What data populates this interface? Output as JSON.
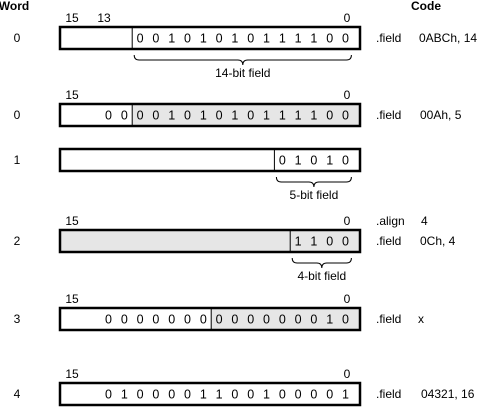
{
  "colors": {
    "field_fill": "#e6e6e6",
    "empty_fill": "#ffffff",
    "stroke": "#000000"
  },
  "headers": {
    "word": "Word",
    "code": "Code"
  },
  "rows": [
    {
      "word": "0",
      "msb_label": "15",
      "high_label": "13",
      "lsb_label": "0",
      "segments": [
        {
          "from": 15,
          "to": 14,
          "shaded": false,
          "bits": []
        },
        {
          "from": 13,
          "to": 0,
          "shaded": false,
          "bits": [
            "0",
            "0",
            "1",
            "0",
            "1",
            "0",
            "1",
            "0",
            "1",
            "1",
            "1",
            "1",
            "0",
            "0"
          ]
        }
      ],
      "brace": {
        "from": 13,
        "to": 0,
        "label": "14-bit field"
      },
      "code": [
        ".field",
        "0ABCh, 14"
      ]
    },
    {
      "word": "0",
      "msb_label": "15",
      "high_label": "",
      "lsb_label": "0",
      "segments": [
        {
          "from": 15,
          "to": 14,
          "shaded": false,
          "bits": [
            "0",
            "0"
          ]
        },
        {
          "from": 13,
          "to": 0,
          "shaded": true,
          "bits": [
            "0",
            "0",
            "1",
            "0",
            "1",
            "0",
            "1",
            "0",
            "1",
            "1",
            "1",
            "1",
            "0",
            "0"
          ]
        }
      ],
      "brace": null,
      "code": [
        ".field",
        "00Ah, 5"
      ]
    },
    {
      "word": "1",
      "msb_label": "",
      "high_label": "",
      "lsb_label": "",
      "segments": [
        {
          "from": 15,
          "to": 5,
          "shaded": false,
          "bits": []
        },
        {
          "from": 4,
          "to": 0,
          "shaded": false,
          "bits": [
            "0",
            "1",
            "0",
            "1",
            "0"
          ]
        }
      ],
      "brace": {
        "from": 4,
        "to": 0,
        "label": "5-bit field"
      },
      "code": [
        "",
        ""
      ]
    },
    {
      "word": "2",
      "msb_label": "15",
      "high_label": "",
      "lsb_label": "0",
      "segments": [
        {
          "from": 15,
          "to": 4,
          "shaded": true,
          "bits": []
        },
        {
          "from": 3,
          "to": 0,
          "shaded": true,
          "bits": [
            "1",
            "1",
            "0",
            "0"
          ]
        }
      ],
      "brace": {
        "from": 3,
        "to": 0,
        "label": "4-bit field"
      },
      "code_above": [
        ".align",
        "4"
      ],
      "code": [
        ".field",
        "0Ch, 4"
      ]
    },
    {
      "word": "3",
      "msb_label": "15",
      "high_label": "",
      "lsb_label": "0",
      "segments": [
        {
          "from": 15,
          "to": 9,
          "shaded": false,
          "bits": [
            "0",
            "0",
            "0",
            "0",
            "0",
            "0",
            "0"
          ]
        },
        {
          "from": 8,
          "to": 0,
          "shaded": true,
          "bits": [
            "0",
            "0",
            "0",
            "0",
            "0",
            "0",
            "0",
            "1",
            "0"
          ]
        }
      ],
      "brace": null,
      "code": [
        ".field",
        "x"
      ]
    },
    {
      "word": "4",
      "msb_label": "15",
      "high_label": "",
      "lsb_label": "0",
      "segments": [
        {
          "from": 15,
          "to": 0,
          "shaded": false,
          "bits": [
            "0",
            "1",
            "0",
            "0",
            "0",
            "0",
            "1",
            "1",
            "0",
            "0",
            "1",
            "0",
            "0",
            "0",
            "0",
            "1"
          ]
        }
      ],
      "brace": null,
      "code": [
        ".field",
        "04321, 16"
      ]
    }
  ]
}
